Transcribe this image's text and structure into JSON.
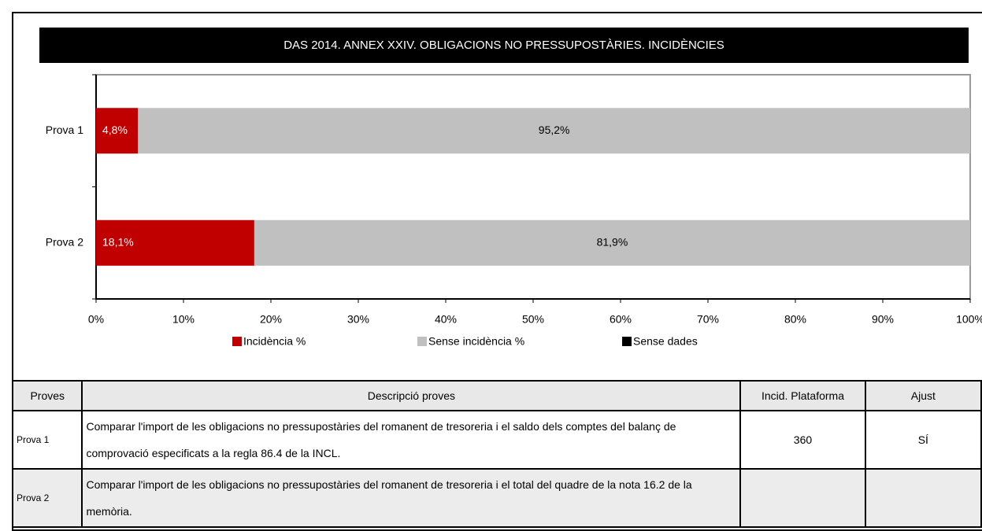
{
  "chart_data": {
    "type": "bar",
    "orientation": "horizontal",
    "stacked": true,
    "title": "DAS 2014. ANNEX XXIV. OBLIGACIONS NO PRESSUPOSTÀRIES. INCIDÈNCIES",
    "categories": [
      "Prova 1",
      "Prova 2"
    ],
    "series": [
      {
        "name": "Incidència %",
        "color": "#c00000",
        "values": [
          4.8,
          18.1
        ],
        "value_labels": [
          "4,8%",
          "18,1%"
        ]
      },
      {
        "name": "Sense incidència %",
        "color": "#c0c0c0",
        "values": [
          95.2,
          81.9
        ],
        "value_labels": [
          "95,2%",
          "81,9%"
        ]
      },
      {
        "name": "Sense dades",
        "color": "#000000",
        "values": [
          0,
          0
        ]
      }
    ],
    "xlim": [
      0,
      100
    ],
    "xticks": [
      {
        "value": 0,
        "label": "0%"
      },
      {
        "value": 10,
        "label": "10%"
      },
      {
        "value": 20,
        "label": "20%"
      },
      {
        "value": 30,
        "label": "30%"
      },
      {
        "value": 40,
        "label": "40%"
      },
      {
        "value": 50,
        "label": "50%"
      },
      {
        "value": 60,
        "label": "60%"
      },
      {
        "value": 70,
        "label": "70%"
      },
      {
        "value": 80,
        "label": "80%"
      },
      {
        "value": 90,
        "label": "90%"
      },
      {
        "value": 100,
        "label": "100%"
      }
    ],
    "legend": "bottom",
    "grid": false
  },
  "table": {
    "header": [
      "Proves",
      "Descripció proves",
      "Incid. Plataforma",
      "Ajust"
    ],
    "rows": [
      [
        "Prova 1",
        "Comparar l'import de les obligacions no pressupostàries del romanent de tresoreria i el saldo dels comptes del balanç de comprovació especificats a la regla 86.4 de la INCL.",
        "360",
        "SÍ"
      ],
      [
        "Prova 2",
        "Comparar l'import de les obligacions no pressupostàries del romanent de tresoreria i el total del quadre de la nota 16.2 de la memòria."
      ]
    ]
  }
}
